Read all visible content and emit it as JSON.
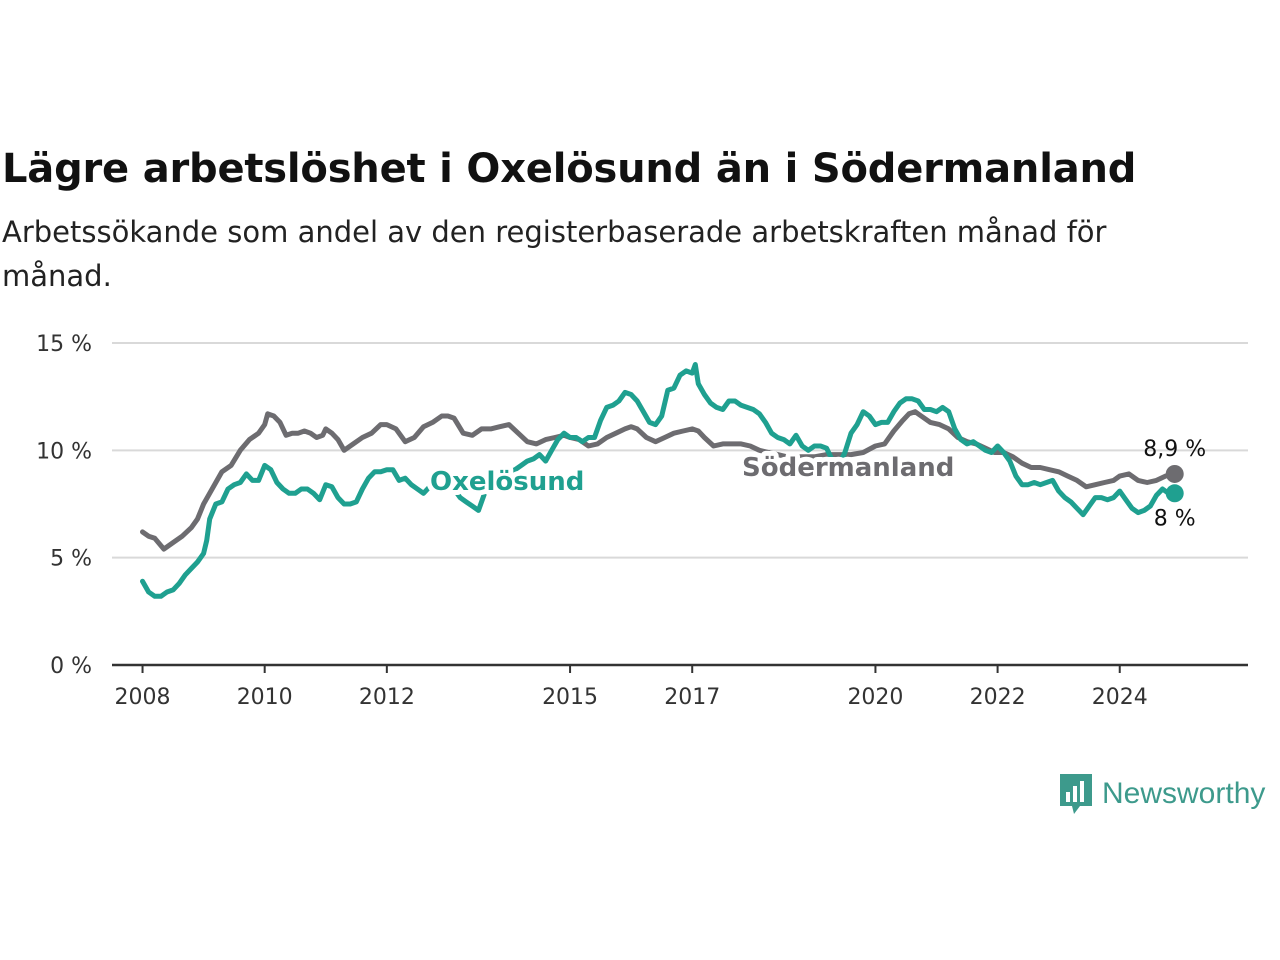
{
  "title": "Lägre arbetslöshet i Oxelösund än i Södermanland",
  "subtitle": "Arbetssökande som andel av den registerbaserade arbetskraften månad för månad.",
  "brand": {
    "name": "Newsworthy",
    "icon": "newsworthy-logo-icon"
  },
  "chart_data": {
    "type": "line",
    "title": "Lägre arbetslöshet i Oxelösund än i Södermanland",
    "xlabel": "",
    "ylabel": "",
    "x_ticks": [
      "2008",
      "2010",
      "2012",
      "2015",
      "2017",
      "2020",
      "2022",
      "2024"
    ],
    "y_ticks": [
      "0 %",
      "5 %",
      "10 %",
      "15 %"
    ],
    "ylim": [
      0,
      15
    ],
    "xlim": [
      2007.5,
      2026.1
    ],
    "grid": true,
    "series": [
      {
        "name": "Södermanland",
        "color": "#6d6c70",
        "end_label": "8,9 %",
        "points": [
          [
            2008.0,
            6.2
          ],
          [
            2008.1,
            6.0
          ],
          [
            2008.2,
            5.9
          ],
          [
            2008.35,
            5.4
          ],
          [
            2008.5,
            5.7
          ],
          [
            2008.65,
            6.0
          ],
          [
            2008.8,
            6.4
          ],
          [
            2008.9,
            6.8
          ],
          [
            2009.0,
            7.5
          ],
          [
            2009.1,
            8.0
          ],
          [
            2009.2,
            8.5
          ],
          [
            2009.3,
            9.0
          ],
          [
            2009.45,
            9.3
          ],
          [
            2009.6,
            10.0
          ],
          [
            2009.75,
            10.5
          ],
          [
            2009.9,
            10.8
          ],
          [
            2010.0,
            11.2
          ],
          [
            2010.05,
            11.7
          ],
          [
            2010.15,
            11.6
          ],
          [
            2010.25,
            11.3
          ],
          [
            2010.35,
            10.7
          ],
          [
            2010.45,
            10.8
          ],
          [
            2010.55,
            10.8
          ],
          [
            2010.65,
            10.9
          ],
          [
            2010.75,
            10.8
          ],
          [
            2010.85,
            10.6
          ],
          [
            2010.95,
            10.7
          ],
          [
            2011.0,
            11.0
          ],
          [
            2011.1,
            10.8
          ],
          [
            2011.2,
            10.5
          ],
          [
            2011.3,
            10.0
          ],
          [
            2011.45,
            10.3
          ],
          [
            2011.6,
            10.6
          ],
          [
            2011.75,
            10.8
          ],
          [
            2011.9,
            11.2
          ],
          [
            2012.0,
            11.2
          ],
          [
            2012.15,
            11.0
          ],
          [
            2012.3,
            10.4
          ],
          [
            2012.45,
            10.6
          ],
          [
            2012.6,
            11.1
          ],
          [
            2012.75,
            11.3
          ],
          [
            2012.9,
            11.6
          ],
          [
            2013.0,
            11.6
          ],
          [
            2013.1,
            11.5
          ],
          [
            2013.25,
            10.8
          ],
          [
            2013.4,
            10.7
          ],
          [
            2013.55,
            11.0
          ],
          [
            2013.7,
            11.0
          ],
          [
            2013.85,
            11.1
          ],
          [
            2014.0,
            11.2
          ],
          [
            2014.15,
            10.8
          ],
          [
            2014.3,
            10.4
          ],
          [
            2014.45,
            10.3
          ],
          [
            2014.6,
            10.5
          ],
          [
            2014.75,
            10.6
          ],
          [
            2014.9,
            10.7
          ],
          [
            2015.0,
            10.6
          ],
          [
            2015.15,
            10.5
          ],
          [
            2015.3,
            10.2
          ],
          [
            2015.45,
            10.3
          ],
          [
            2015.6,
            10.6
          ],
          [
            2015.75,
            10.8
          ],
          [
            2015.9,
            11.0
          ],
          [
            2016.0,
            11.1
          ],
          [
            2016.1,
            11.0
          ],
          [
            2016.25,
            10.6
          ],
          [
            2016.4,
            10.4
          ],
          [
            2016.55,
            10.6
          ],
          [
            2016.7,
            10.8
          ],
          [
            2016.85,
            10.9
          ],
          [
            2017.0,
            11.0
          ],
          [
            2017.1,
            10.9
          ],
          [
            2017.2,
            10.6
          ],
          [
            2017.35,
            10.2
          ],
          [
            2017.5,
            10.3
          ],
          [
            2017.65,
            10.3
          ],
          [
            2017.8,
            10.3
          ],
          [
            2017.95,
            10.2
          ],
          [
            2018.1,
            10.0
          ],
          [
            2018.25,
            9.9
          ],
          [
            2018.4,
            9.8
          ],
          [
            2018.55,
            9.7
          ],
          [
            2018.7,
            9.7
          ],
          [
            2018.85,
            9.7
          ],
          [
            2019.0,
            9.7
          ],
          [
            2019.2,
            9.8
          ],
          [
            2019.4,
            9.8
          ],
          [
            2019.6,
            9.8
          ],
          [
            2019.8,
            9.9
          ],
          [
            2020.0,
            10.2
          ],
          [
            2020.15,
            10.3
          ],
          [
            2020.3,
            10.9
          ],
          [
            2020.45,
            11.4
          ],
          [
            2020.55,
            11.7
          ],
          [
            2020.65,
            11.8
          ],
          [
            2020.75,
            11.6
          ],
          [
            2020.9,
            11.3
          ],
          [
            2021.05,
            11.2
          ],
          [
            2021.2,
            11.0
          ],
          [
            2021.35,
            10.6
          ],
          [
            2021.5,
            10.4
          ],
          [
            2021.65,
            10.3
          ],
          [
            2021.8,
            10.1
          ],
          [
            2021.95,
            9.9
          ],
          [
            2022.1,
            9.9
          ],
          [
            2022.25,
            9.7
          ],
          [
            2022.4,
            9.4
          ],
          [
            2022.55,
            9.2
          ],
          [
            2022.7,
            9.2
          ],
          [
            2022.85,
            9.1
          ],
          [
            2023.0,
            9.0
          ],
          [
            2023.15,
            8.8
          ],
          [
            2023.3,
            8.6
          ],
          [
            2023.45,
            8.3
          ],
          [
            2023.6,
            8.4
          ],
          [
            2023.75,
            8.5
          ],
          [
            2023.9,
            8.6
          ],
          [
            2024.0,
            8.8
          ],
          [
            2024.15,
            8.9
          ],
          [
            2024.3,
            8.6
          ],
          [
            2024.45,
            8.5
          ],
          [
            2024.6,
            8.6
          ],
          [
            2024.75,
            8.8
          ],
          [
            2024.9,
            8.9
          ]
        ]
      },
      {
        "name": "Oxelösund",
        "color": "#1fa090",
        "end_label": "8 %",
        "points": [
          [
            2008.0,
            3.9
          ],
          [
            2008.1,
            3.4
          ],
          [
            2008.2,
            3.2
          ],
          [
            2008.3,
            3.2
          ],
          [
            2008.4,
            3.4
          ],
          [
            2008.5,
            3.5
          ],
          [
            2008.6,
            3.8
          ],
          [
            2008.7,
            4.2
          ],
          [
            2008.8,
            4.5
          ],
          [
            2008.9,
            4.8
          ],
          [
            2009.0,
            5.2
          ],
          [
            2009.05,
            5.8
          ],
          [
            2009.1,
            6.8
          ],
          [
            2009.2,
            7.5
          ],
          [
            2009.3,
            7.6
          ],
          [
            2009.4,
            8.2
          ],
          [
            2009.5,
            8.4
          ],
          [
            2009.6,
            8.5
          ],
          [
            2009.7,
            8.9
          ],
          [
            2009.8,
            8.6
          ],
          [
            2009.9,
            8.6
          ],
          [
            2010.0,
            9.3
          ],
          [
            2010.1,
            9.1
          ],
          [
            2010.2,
            8.5
          ],
          [
            2010.3,
            8.2
          ],
          [
            2010.4,
            8.0
          ],
          [
            2010.5,
            8.0
          ],
          [
            2010.6,
            8.2
          ],
          [
            2010.7,
            8.2
          ],
          [
            2010.8,
            8.0
          ],
          [
            2010.9,
            7.7
          ],
          [
            2011.0,
            8.4
          ],
          [
            2011.1,
            8.3
          ],
          [
            2011.2,
            7.8
          ],
          [
            2011.3,
            7.5
          ],
          [
            2011.4,
            7.5
          ],
          [
            2011.5,
            7.6
          ],
          [
            2011.6,
            8.2
          ],
          [
            2011.7,
            8.7
          ],
          [
            2011.8,
            9.0
          ],
          [
            2011.9,
            9.0
          ],
          [
            2012.0,
            9.1
          ],
          [
            2012.1,
            9.1
          ],
          [
            2012.2,
            8.6
          ],
          [
            2012.3,
            8.7
          ],
          [
            2012.4,
            8.4
          ],
          [
            2012.5,
            8.2
          ],
          [
            2012.6,
            8.0
          ],
          [
            2012.7,
            8.3
          ],
          [
            2012.8,
            8.8
          ],
          [
            2012.9,
            8.8
          ],
          [
            2013.0,
            8.6
          ],
          [
            2013.1,
            8.2
          ],
          [
            2013.2,
            7.8
          ],
          [
            2013.3,
            7.6
          ],
          [
            2013.4,
            7.4
          ],
          [
            2013.5,
            7.2
          ],
          [
            2013.6,
            8.0
          ],
          [
            2013.7,
            8.6
          ],
          [
            2013.8,
            9.0
          ],
          [
            2013.9,
            9.2
          ],
          [
            2014.0,
            9.0
          ],
          [
            2014.1,
            9.1
          ],
          [
            2014.2,
            9.3
          ],
          [
            2014.3,
            9.5
          ],
          [
            2014.4,
            9.6
          ],
          [
            2014.5,
            9.8
          ],
          [
            2014.6,
            9.5
          ],
          [
            2014.7,
            10.0
          ],
          [
            2014.8,
            10.5
          ],
          [
            2014.9,
            10.8
          ],
          [
            2015.0,
            10.6
          ],
          [
            2015.1,
            10.6
          ],
          [
            2015.2,
            10.4
          ],
          [
            2015.3,
            10.6
          ],
          [
            2015.4,
            10.6
          ],
          [
            2015.5,
            11.4
          ],
          [
            2015.6,
            12.0
          ],
          [
            2015.7,
            12.1
          ],
          [
            2015.8,
            12.3
          ],
          [
            2015.9,
            12.7
          ],
          [
            2016.0,
            12.6
          ],
          [
            2016.1,
            12.3
          ],
          [
            2016.2,
            11.8
          ],
          [
            2016.3,
            11.3
          ],
          [
            2016.4,
            11.2
          ],
          [
            2016.5,
            11.6
          ],
          [
            2016.6,
            12.8
          ],
          [
            2016.7,
            12.9
          ],
          [
            2016.8,
            13.5
          ],
          [
            2016.9,
            13.7
          ],
          [
            2017.0,
            13.6
          ],
          [
            2017.05,
            14.0
          ],
          [
            2017.1,
            13.1
          ],
          [
            2017.2,
            12.6
          ],
          [
            2017.3,
            12.2
          ],
          [
            2017.4,
            12.0
          ],
          [
            2017.5,
            11.9
          ],
          [
            2017.6,
            12.3
          ],
          [
            2017.7,
            12.3
          ],
          [
            2017.8,
            12.1
          ],
          [
            2017.9,
            12.0
          ],
          [
            2018.0,
            11.9
          ],
          [
            2018.1,
            11.7
          ],
          [
            2018.2,
            11.3
          ],
          [
            2018.3,
            10.8
          ],
          [
            2018.4,
            10.6
          ],
          [
            2018.5,
            10.5
          ],
          [
            2018.6,
            10.3
          ],
          [
            2018.7,
            10.7
          ],
          [
            2018.8,
            10.2
          ],
          [
            2018.9,
            10.0
          ],
          [
            2019.0,
            10.2
          ],
          [
            2019.1,
            10.2
          ],
          [
            2019.2,
            10.1
          ],
          [
            2019.3,
            9.5
          ],
          [
            2019.4,
            9.3
          ],
          [
            2019.5,
            9.9
          ],
          [
            2019.6,
            10.8
          ],
          [
            2019.7,
            11.2
          ],
          [
            2019.8,
            11.8
          ],
          [
            2019.9,
            11.6
          ],
          [
            2020.0,
            11.2
          ],
          [
            2020.1,
            11.3
          ],
          [
            2020.2,
            11.3
          ],
          [
            2020.3,
            11.8
          ],
          [
            2020.4,
            12.2
          ],
          [
            2020.5,
            12.4
          ],
          [
            2020.6,
            12.4
          ],
          [
            2020.7,
            12.3
          ],
          [
            2020.8,
            11.9
          ],
          [
            2020.9,
            11.9
          ],
          [
            2021.0,
            11.8
          ],
          [
            2021.1,
            12.0
          ],
          [
            2021.2,
            11.8
          ],
          [
            2021.3,
            11.0
          ],
          [
            2021.4,
            10.5
          ],
          [
            2021.5,
            10.3
          ],
          [
            2021.6,
            10.4
          ],
          [
            2021.7,
            10.2
          ],
          [
            2021.8,
            10.0
          ],
          [
            2021.9,
            9.9
          ],
          [
            2022.0,
            10.2
          ],
          [
            2022.1,
            9.9
          ],
          [
            2022.2,
            9.5
          ],
          [
            2022.3,
            8.8
          ],
          [
            2022.4,
            8.4
          ],
          [
            2022.5,
            8.4
          ],
          [
            2022.6,
            8.5
          ],
          [
            2022.7,
            8.4
          ],
          [
            2022.8,
            8.5
          ],
          [
            2022.9,
            8.6
          ],
          [
            2023.0,
            8.1
          ],
          [
            2023.1,
            7.8
          ],
          [
            2023.2,
            7.6
          ],
          [
            2023.3,
            7.3
          ],
          [
            2023.4,
            7.0
          ],
          [
            2023.5,
            7.4
          ],
          [
            2023.6,
            7.8
          ],
          [
            2023.7,
            7.8
          ],
          [
            2023.8,
            7.7
          ],
          [
            2023.9,
            7.8
          ],
          [
            2024.0,
            8.1
          ],
          [
            2024.1,
            7.7
          ],
          [
            2024.2,
            7.3
          ],
          [
            2024.3,
            7.1
          ],
          [
            2024.4,
            7.2
          ],
          [
            2024.5,
            7.4
          ],
          [
            2024.6,
            7.9
          ],
          [
            2024.7,
            8.2
          ],
          [
            2024.8,
            8.0
          ],
          [
            2024.9,
            8.0
          ]
        ]
      }
    ]
  }
}
